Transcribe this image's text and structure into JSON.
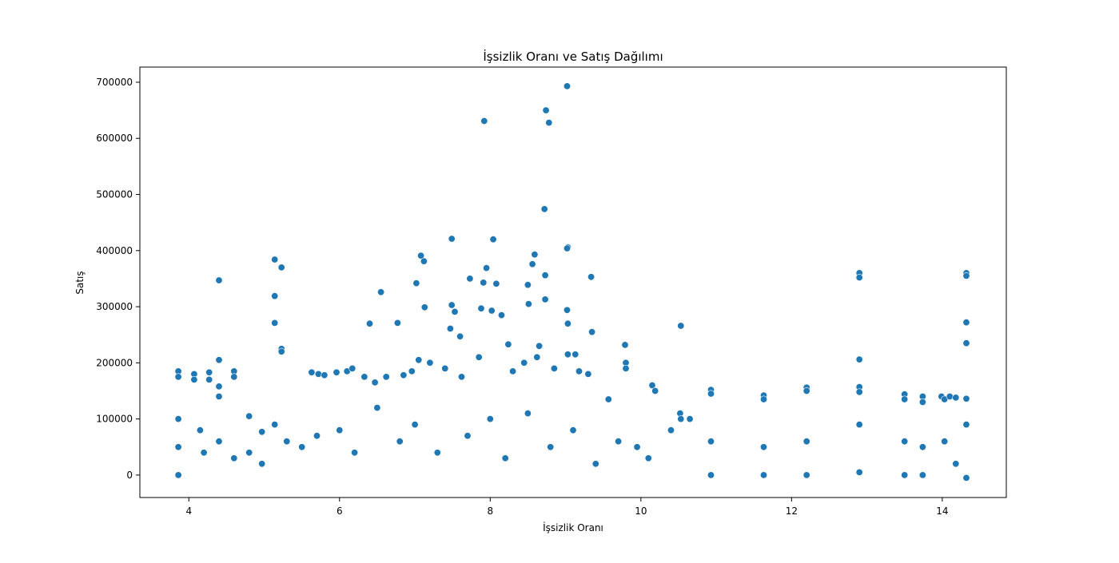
{
  "chart_data": {
    "type": "scatter",
    "title": "İşsizlik Oranı ve Satış Dağılımı",
    "xlabel": "İşsizlik Oranı",
    "ylabel": "Satış",
    "xlim": [
      3.35,
      14.85
    ],
    "ylim": [
      -40000,
      727000
    ],
    "xticks": [
      4,
      6,
      8,
      10,
      12,
      14
    ],
    "xtick_labels": [
      "4",
      "6",
      "8",
      "10",
      "12",
      "14"
    ],
    "yticks": [
      0,
      100000,
      200000,
      300000,
      400000,
      500000,
      600000,
      700000
    ],
    "ytick_labels": [
      "0",
      "100000",
      "200000",
      "300000",
      "400000",
      "500000",
      "600000",
      "700000"
    ],
    "grid": false,
    "marker_color": "#1f77b4",
    "marker_edge_color": "#ffffff",
    "series": [
      {
        "points": [
          [
            7.92,
            631000
          ],
          [
            9.02,
            693000
          ],
          [
            8.74,
            650000
          ],
          [
            8.78,
            628000
          ],
          [
            8.72,
            474000
          ],
          [
            7.49,
            421000
          ],
          [
            8.04,
            420000
          ],
          [
            9.03,
            406000
          ],
          [
            9.02,
            404000
          ],
          [
            7.08,
            391000
          ],
          [
            7.12,
            381000
          ],
          [
            5.14,
            384000
          ],
          [
            5.23,
            370000
          ],
          [
            7.95,
            369000
          ],
          [
            8.56,
            376000
          ],
          [
            8.59,
            393000
          ],
          [
            8.73,
            356000
          ],
          [
            9.34,
            353000
          ],
          [
            7.73,
            350000
          ],
          [
            8.08,
            341000
          ],
          [
            7.02,
            342000
          ],
          [
            7.91,
            343000
          ],
          [
            8.5,
            339000
          ],
          [
            4.4,
            347000
          ],
          [
            6.55,
            326000
          ],
          [
            5.14,
            319000
          ],
          [
            8.73,
            313000
          ],
          [
            8.51,
            305000
          ],
          [
            7.49,
            303000
          ],
          [
            7.13,
            299000
          ],
          [
            7.53,
            291000
          ],
          [
            7.88,
            297000
          ],
          [
            9.02,
            294000
          ],
          [
            8.02,
            293000
          ],
          [
            8.15,
            285000
          ],
          [
            6.77,
            271000
          ],
          [
            5.14,
            271000
          ],
          [
            7.47,
            261000
          ],
          [
            7.6,
            247000
          ],
          [
            9.35,
            255000
          ],
          [
            6.4,
            270000
          ],
          [
            9.03,
            270000
          ],
          [
            10.53,
            266000
          ],
          [
            12.9,
            360000
          ],
          [
            12.9,
            352000
          ],
          [
            14.32,
            360000
          ],
          [
            14.32,
            355000
          ],
          [
            14.32,
            272000
          ],
          [
            14.32,
            235000
          ],
          [
            12.9,
            206000
          ],
          [
            9.79,
            232000
          ],
          [
            4.4,
            205000
          ],
          [
            5.23,
            225000
          ],
          [
            5.23,
            220000
          ],
          [
            8.65,
            230000
          ],
          [
            8.24,
            233000
          ],
          [
            9.03,
            215000
          ],
          [
            9.13,
            215000
          ],
          [
            10.15,
            160000
          ],
          [
            10.19,
            150000
          ],
          [
            10.52,
            110000
          ],
          [
            10.53,
            100000
          ],
          [
            3.86,
            185000
          ],
          [
            3.86,
            175000
          ],
          [
            4.07,
            180000
          ],
          [
            4.07,
            170000
          ],
          [
            4.27,
            183000
          ],
          [
            4.27,
            170000
          ],
          [
            4.6,
            185000
          ],
          [
            4.6,
            175000
          ],
          [
            4.4,
            158000
          ],
          [
            4.4,
            140000
          ],
          [
            5.63,
            183000
          ],
          [
            5.72,
            180000
          ],
          [
            5.8,
            178000
          ],
          [
            5.96,
            183000
          ],
          [
            6.1,
            185000
          ],
          [
            6.17,
            190000
          ],
          [
            6.33,
            175000
          ],
          [
            6.47,
            165000
          ],
          [
            6.62,
            175000
          ],
          [
            6.85,
            178000
          ],
          [
            6.96,
            185000
          ],
          [
            7.05,
            205000
          ],
          [
            7.2,
            200000
          ],
          [
            7.4,
            190000
          ],
          [
            7.62,
            175000
          ],
          [
            7.85,
            210000
          ],
          [
            8.3,
            185000
          ],
          [
            8.45,
            200000
          ],
          [
            8.62,
            210000
          ],
          [
            8.85,
            190000
          ],
          [
            9.18,
            185000
          ],
          [
            9.3,
            180000
          ],
          [
            9.57,
            135000
          ],
          [
            9.8,
            200000
          ],
          [
            9.8,
            190000
          ],
          [
            10.93,
            152000
          ],
          [
            10.93,
            145000
          ],
          [
            11.63,
            142000
          ],
          [
            11.63,
            135000
          ],
          [
            12.2,
            156000
          ],
          [
            12.2,
            150000
          ],
          [
            12.9,
            157000
          ],
          [
            12.9,
            148000
          ],
          [
            13.5,
            144000
          ],
          [
            13.5,
            135000
          ],
          [
            13.74,
            140000
          ],
          [
            13.74,
            130000
          ],
          [
            13.99,
            140000
          ],
          [
            14.03,
            135000
          ],
          [
            14.1,
            140000
          ],
          [
            14.18,
            138000
          ],
          [
            14.32,
            136000
          ],
          [
            3.86,
            100000
          ],
          [
            3.86,
            50000
          ],
          [
            3.86,
            0
          ],
          [
            4.15,
            80000
          ],
          [
            4.2,
            40000
          ],
          [
            4.4,
            60000
          ],
          [
            4.6,
            30000
          ],
          [
            4.8,
            105000
          ],
          [
            4.8,
            40000
          ],
          [
            4.97,
            77000
          ],
          [
            4.97,
            20000
          ],
          [
            5.14,
            90000
          ],
          [
            5.3,
            60000
          ],
          [
            5.5,
            50000
          ],
          [
            5.7,
            70000
          ],
          [
            6.0,
            80000
          ],
          [
            6.2,
            40000
          ],
          [
            6.5,
            120000
          ],
          [
            6.8,
            60000
          ],
          [
            7.0,
            90000
          ],
          [
            7.3,
            40000
          ],
          [
            7.7,
            70000
          ],
          [
            8.0,
            100000
          ],
          [
            8.2,
            30000
          ],
          [
            8.5,
            110000
          ],
          [
            8.8,
            50000
          ],
          [
            9.1,
            80000
          ],
          [
            9.4,
            20000
          ],
          [
            9.7,
            60000
          ],
          [
            9.95,
            50000
          ],
          [
            10.1,
            30000
          ],
          [
            10.4,
            80000
          ],
          [
            10.65,
            100000
          ],
          [
            10.93,
            60000
          ],
          [
            10.93,
            0
          ],
          [
            11.63,
            50000
          ],
          [
            11.63,
            0
          ],
          [
            12.2,
            60000
          ],
          [
            12.2,
            0
          ],
          [
            12.9,
            90000
          ],
          [
            12.9,
            5000
          ],
          [
            13.5,
            60000
          ],
          [
            13.5,
            0
          ],
          [
            13.74,
            50000
          ],
          [
            13.74,
            0
          ],
          [
            14.03,
            60000
          ],
          [
            14.18,
            20000
          ],
          [
            14.32,
            90000
          ],
          [
            14.32,
            -5000
          ]
        ]
      }
    ]
  }
}
